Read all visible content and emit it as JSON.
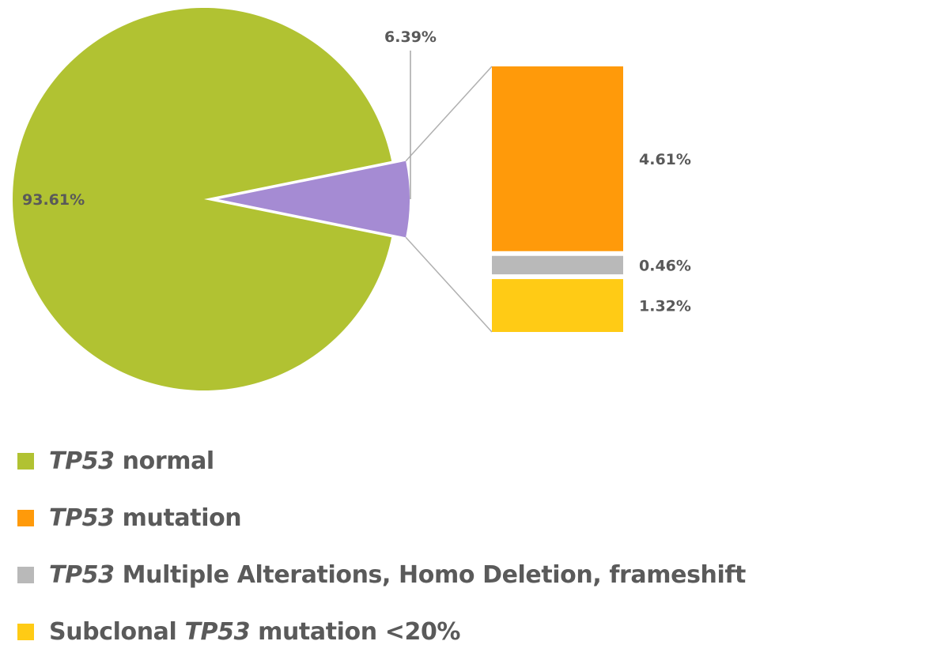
{
  "chart_data": {
    "type": "pie",
    "pie": {
      "slices": [
        {
          "key": "normal",
          "value": 93.61,
          "label": "93.61%",
          "color": "#b1c232"
        },
        {
          "key": "altered",
          "value": 6.39,
          "label": "6.39%",
          "color": "#a58bd3"
        }
      ]
    },
    "breakdown": {
      "type": "stacked-bar",
      "of_slice": "altered",
      "segments": [
        {
          "key": "mutation",
          "value": 4.61,
          "label": "4.61%",
          "color": "#ff9a0a"
        },
        {
          "key": "multiple",
          "value": 0.46,
          "label": "0.46%",
          "color": "#b9b9b9"
        },
        {
          "key": "subclonal",
          "value": 1.32,
          "label": "1.32%",
          "color": "#ffcb15"
        }
      ]
    },
    "legend": [
      {
        "key": "normal",
        "color": "#b1c232",
        "prefix": "",
        "gene": "TP53",
        "suffix": " normal"
      },
      {
        "key": "mutation",
        "color": "#ff9a0a",
        "prefix": "",
        "gene": "TP53",
        "suffix": " mutation"
      },
      {
        "key": "multiple",
        "color": "#b9b9b9",
        "prefix": "",
        "gene": "TP53",
        "suffix": " Multiple Alterations, Homo Deletion, frameshift"
      },
      {
        "key": "subclonal",
        "color": "#ffcb15",
        "prefix": "Subclonal ",
        "gene": "TP53",
        "suffix": " mutation <20%"
      }
    ]
  }
}
